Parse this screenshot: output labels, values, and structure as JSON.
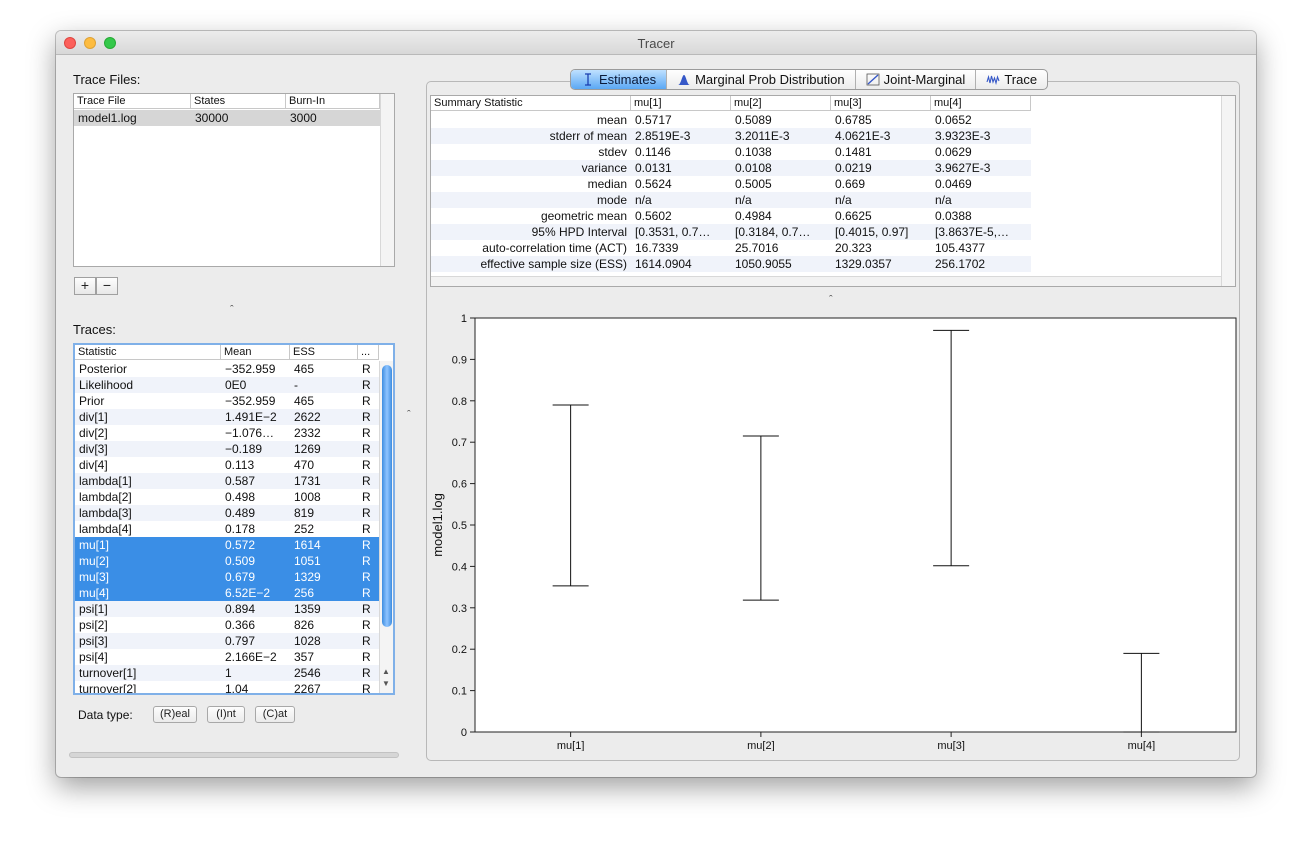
{
  "window": {
    "title": "Tracer"
  },
  "trace_files": {
    "label": "Trace Files:",
    "columns": [
      "Trace File",
      "States",
      "Burn-In"
    ],
    "rows": [
      {
        "file": "model1.log",
        "states": "30000",
        "burnin": "3000"
      }
    ],
    "add_label": "+",
    "remove_label": "−"
  },
  "traces": {
    "label": "Traces:",
    "columns": [
      "Statistic",
      "Mean",
      "ESS",
      "..."
    ],
    "rows": [
      {
        "name": "Posterior",
        "mean": "−352.959",
        "ess": "465",
        "type": "R",
        "selected": false
      },
      {
        "name": "Likelihood",
        "mean": "0E0",
        "ess": "-",
        "type": "R",
        "selected": false
      },
      {
        "name": "Prior",
        "mean": "−352.959",
        "ess": "465",
        "type": "R",
        "selected": false
      },
      {
        "name": "div[1]",
        "mean": "1.491E−2",
        "ess": "2622",
        "type": "R",
        "selected": false
      },
      {
        "name": "div[2]",
        "mean": "−1.076…",
        "ess": "2332",
        "type": "R",
        "selected": false
      },
      {
        "name": "div[3]",
        "mean": "−0.189",
        "ess": "1269",
        "type": "R",
        "selected": false
      },
      {
        "name": "div[4]",
        "mean": "0.113",
        "ess": "470",
        "type": "R",
        "selected": false
      },
      {
        "name": "lambda[1]",
        "mean": "0.587",
        "ess": "1731",
        "type": "R",
        "selected": false
      },
      {
        "name": "lambda[2]",
        "mean": "0.498",
        "ess": "1008",
        "type": "R",
        "selected": false
      },
      {
        "name": "lambda[3]",
        "mean": "0.489",
        "ess": "819",
        "type": "R",
        "selected": false
      },
      {
        "name": "lambda[4]",
        "mean": "0.178",
        "ess": "252",
        "type": "R",
        "selected": false
      },
      {
        "name": "mu[1]",
        "mean": "0.572",
        "ess": "1614",
        "type": "R",
        "selected": true
      },
      {
        "name": "mu[2]",
        "mean": "0.509",
        "ess": "1051",
        "type": "R",
        "selected": true
      },
      {
        "name": "mu[3]",
        "mean": "0.679",
        "ess": "1329",
        "type": "R",
        "selected": true
      },
      {
        "name": "mu[4]",
        "mean": "6.52E−2",
        "ess": "256",
        "type": "R",
        "selected": true
      },
      {
        "name": "psi[1]",
        "mean": "0.894",
        "ess": "1359",
        "type": "R",
        "selected": false
      },
      {
        "name": "psi[2]",
        "mean": "0.366",
        "ess": "826",
        "type": "R",
        "selected": false
      },
      {
        "name": "psi[3]",
        "mean": "0.797",
        "ess": "1028",
        "type": "R",
        "selected": false
      },
      {
        "name": "psi[4]",
        "mean": "2.166E−2",
        "ess": "357",
        "type": "R",
        "selected": false
      },
      {
        "name": "turnover[1]",
        "mean": "1",
        "ess": "2546",
        "type": "R",
        "selected": false
      },
      {
        "name": "turnover[2]",
        "mean": "1.04",
        "ess": "2267",
        "type": "R",
        "selected": false
      }
    ]
  },
  "data_type": {
    "label": "Data type:",
    "buttons": [
      "(R)eal",
      "(I)nt",
      "(C)at"
    ]
  },
  "tabs": [
    "Estimates",
    "Marginal Prob Distribution",
    "Joint-Marginal",
    "Trace"
  ],
  "summary": {
    "columns": [
      "Summary Statistic",
      "mu[1]",
      "mu[2]",
      "mu[3]",
      "mu[4]"
    ],
    "rows": [
      {
        "stat": "mean",
        "v": [
          "0.5717",
          "0.5089",
          "0.6785",
          "0.0652"
        ]
      },
      {
        "stat": "stderr of mean",
        "v": [
          "2.8519E-3",
          "3.2011E-3",
          "4.0621E-3",
          "3.9323E-3"
        ]
      },
      {
        "stat": "stdev",
        "v": [
          "0.1146",
          "0.1038",
          "0.1481",
          "0.0629"
        ]
      },
      {
        "stat": "variance",
        "v": [
          "0.0131",
          "0.0108",
          "0.0219",
          "3.9627E-3"
        ]
      },
      {
        "stat": "median",
        "v": [
          "0.5624",
          "0.5005",
          "0.669",
          "0.0469"
        ]
      },
      {
        "stat": "mode",
        "v": [
          "n/a",
          "n/a",
          "n/a",
          "n/a"
        ]
      },
      {
        "stat": "geometric mean",
        "v": [
          "0.5602",
          "0.4984",
          "0.6625",
          "0.0388"
        ]
      },
      {
        "stat": "95% HPD Interval",
        "v": [
          "[0.3531, 0.7…",
          "[0.3184, 0.7…",
          "[0.4015, 0.97]",
          "[3.8637E-5,…"
        ]
      },
      {
        "stat": "auto-correlation time (ACT)",
        "v": [
          "16.7339",
          "25.7016",
          "20.323",
          "105.4377"
        ]
      },
      {
        "stat": "effective sample size (ESS)",
        "v": [
          "1614.0904",
          "1050.9055",
          "1329.0357",
          "256.1702"
        ]
      }
    ]
  },
  "chart_data": {
    "type": "errorbar",
    "ylabel": "model1.log",
    "ylim": [
      0,
      1
    ],
    "yticks": [
      "0",
      "0.1",
      "0.2",
      "0.3",
      "0.4",
      "0.5",
      "0.6",
      "0.7",
      "0.8",
      "0.9",
      "1"
    ],
    "categories": [
      "mu[1]",
      "mu[2]",
      "mu[3]",
      "mu[4]"
    ],
    "lower": [
      0.3531,
      0.3184,
      0.4015,
      0.0
    ],
    "upper": [
      0.79,
      0.715,
      0.97,
      0.19
    ]
  }
}
